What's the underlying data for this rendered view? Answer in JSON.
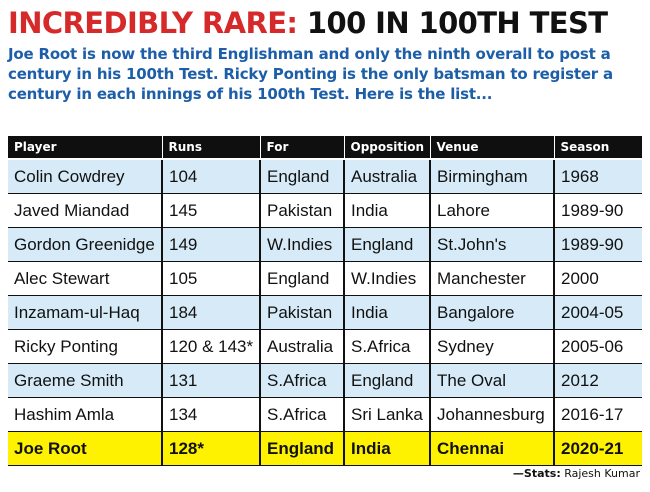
{
  "headline": {
    "red": "INCREDIBLY RARE:",
    "black": "100 IN 100TH TEST"
  },
  "deck": "Joe Root is now the third Englishman and only the ninth overall to post a century in his 100th Test. Ricky Ponting is the only batsman to register a century in each innings of his 100th Test. Here is the list...",
  "table": {
    "headers": [
      "Player",
      "Runs",
      "For",
      "Opposition",
      "Venue",
      "Season"
    ],
    "rows": [
      [
        "Colin Cowdrey",
        "104",
        "England",
        "Australia",
        "Birmingham",
        "1968"
      ],
      [
        "Javed Miandad",
        "145",
        "Pakistan",
        "India",
        "Lahore",
        "1989-90"
      ],
      [
        "Gordon Greenidge",
        "149",
        "W.Indies",
        "England",
        "St.John's",
        "1989-90"
      ],
      [
        "Alec Stewart",
        "105",
        "England",
        "W.Indies",
        "Manchester",
        "2000"
      ],
      [
        "Inzamam-ul-Haq",
        "184",
        "Pakistan",
        "India",
        "Bangalore",
        "2004-05"
      ],
      [
        "Ricky Ponting",
        "120 & 143*",
        "Australia",
        "S.Africa",
        "Sydney",
        "2005-06"
      ],
      [
        "Graeme Smith",
        "131",
        "S.Africa",
        "England",
        "The Oval",
        "2012"
      ],
      [
        "Hashim Amla",
        "134",
        "S.Africa",
        "Sri Lanka",
        "Johannesburg",
        "2016-17"
      ],
      [
        "Joe Root",
        "128*",
        "England",
        "India",
        "Chennai",
        "2020-21"
      ]
    ],
    "highlight_row_color": "#fff200",
    "alt_row_color": "#d6ebf7",
    "header_color": "#0f0f0f"
  },
  "credit": {
    "prefix": "—Stats:",
    "name": "Rajesh Kumar"
  },
  "colors": {
    "headline_accent": "#d62a2a",
    "deck": "#1c5ea8"
  }
}
